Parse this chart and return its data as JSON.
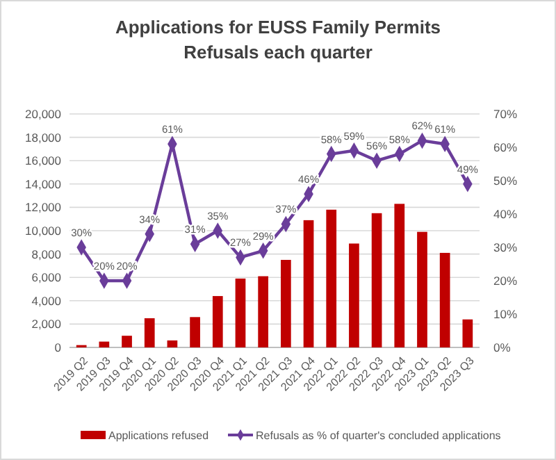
{
  "chart_data": {
    "type": "bar",
    "title": "Applications for EUSS Family Permits\nRefusals each quarter",
    "categories": [
      "2019 Q2",
      "2019 Q3",
      "2019 Q4",
      "2020 Q1",
      "2020 Q2",
      "2020 Q3",
      "2020 Q4",
      "2021 Q1",
      "2021 Q2",
      "2021 Q3",
      "2021 Q4",
      "2022 Q1",
      "2022 Q2",
      "2022 Q3",
      "2022 Q4",
      "2023 Q1",
      "2023 Q2",
      "2023 Q3"
    ],
    "series": [
      {
        "name": "Applications refused",
        "color": "#c00000",
        "values": [
          200,
          500,
          1000,
          2500,
          600,
          2600,
          4400,
          5900,
          6100,
          7500,
          10900,
          11800,
          8900,
          11500,
          12300,
          9900,
          8100,
          2400
        ]
      },
      {
        "name": "Refusals as % of quarter's concluded applications",
        "type": "line",
        "axis": "y2",
        "color": "#6a3d9a",
        "marker": "diamond",
        "values": [
          30,
          20,
          20,
          34,
          61,
          31,
          35,
          27,
          29,
          37,
          46,
          58,
          59,
          56,
          58,
          62,
          61,
          49
        ],
        "value_labels": [
          "30%",
          "20%",
          "20%",
          "34%",
          "61%",
          "31%",
          "35%",
          "27%",
          "29%",
          "37%",
          "46%",
          "58%",
          "59%",
          "56%",
          "58%",
          "62%",
          "61%",
          "49%"
        ]
      }
    ],
    "ylim": [
      0,
      20000
    ],
    "yticks": [
      {
        "value": 0,
        "label": "0"
      },
      {
        "value": 2000,
        "label": "2,000"
      },
      {
        "value": 4000,
        "label": "4,000"
      },
      {
        "value": 6000,
        "label": "6,000"
      },
      {
        "value": 8000,
        "label": "8,000"
      },
      {
        "value": 10000,
        "label": "10,000"
      },
      {
        "value": 12000,
        "label": "12,000"
      },
      {
        "value": 14000,
        "label": "14,000"
      },
      {
        "value": 16000,
        "label": "16,000"
      },
      {
        "value": 18000,
        "label": "18,000"
      },
      {
        "value": 20000,
        "label": "20,000"
      }
    ],
    "y2lim": [
      0,
      70
    ],
    "y2ticks": [
      {
        "value": 0,
        "label": "0%"
      },
      {
        "value": 10,
        "label": "10%"
      },
      {
        "value": 20,
        "label": "20%"
      },
      {
        "value": 30,
        "label": "30%"
      },
      {
        "value": 40,
        "label": "40%"
      },
      {
        "value": 50,
        "label": "50%"
      },
      {
        "value": 60,
        "label": "60%"
      },
      {
        "value": 70,
        "label": "70%"
      }
    ],
    "grid": "y",
    "legend": "bottom"
  }
}
